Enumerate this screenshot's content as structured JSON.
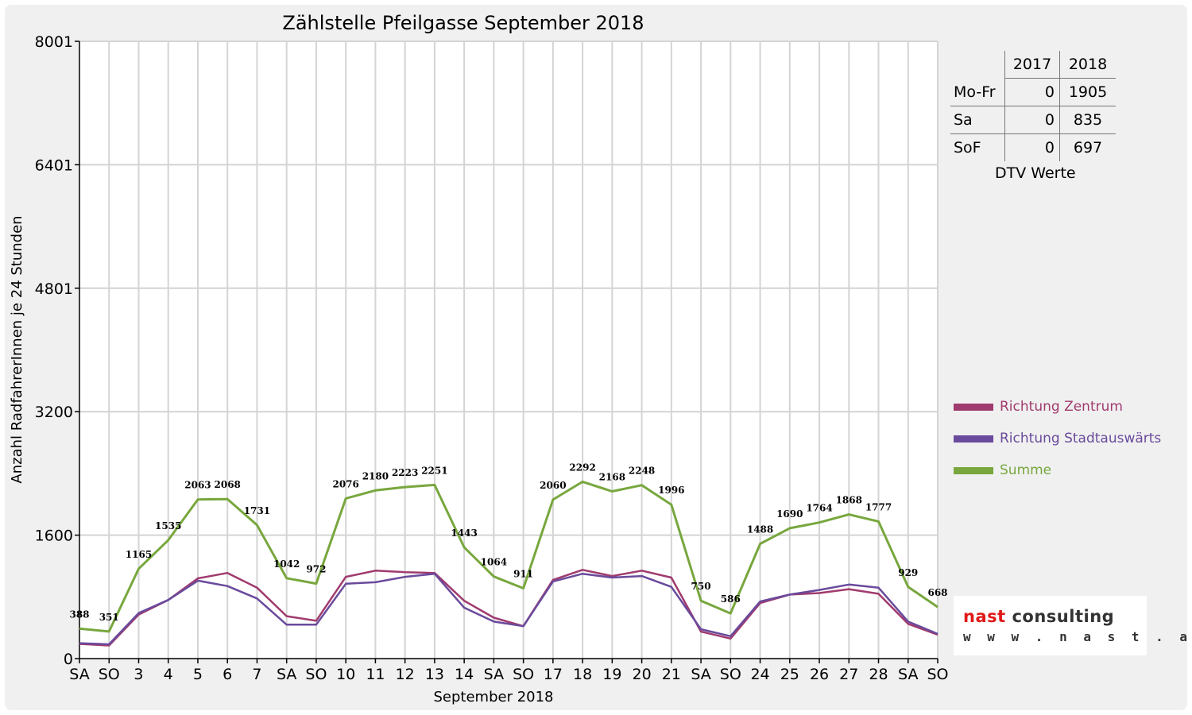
{
  "chart_data": {
    "type": "line",
    "title": "Zählstelle Pfeilgasse September 2018",
    "xlabel": "September 2018",
    "ylabel": "Anzahl RadfahrerInnen je 24 Stunden",
    "ylim": [
      0,
      8001
    ],
    "yticks": [
      "0",
      "1600",
      "3200",
      "4801",
      "6401",
      "8001"
    ],
    "ytick_values": [
      0,
      1600,
      3200,
      4801,
      6401,
      8001
    ],
    "categories": [
      "SA",
      "SO",
      "3",
      "4",
      "5",
      "6",
      "7",
      "SA",
      "SO",
      "10",
      "11",
      "12",
      "13",
      "14",
      "SA",
      "SO",
      "17",
      "18",
      "19",
      "20",
      "21",
      "SA",
      "SO",
      "24",
      "25",
      "26",
      "27",
      "28",
      "SA",
      "SO"
    ],
    "weekend_red": [
      false,
      true,
      false,
      false,
      false,
      false,
      false,
      false,
      true,
      false,
      false,
      false,
      false,
      false,
      false,
      true,
      false,
      false,
      false,
      false,
      false,
      false,
      true,
      false,
      false,
      false,
      false,
      false,
      false,
      true
    ],
    "grid": true,
    "legend_position": "right",
    "series": [
      {
        "name": "Richtung Zentrum",
        "color": "#a03b6e",
        "values": [
          190,
          170,
          570,
          760,
          1040,
          1110,
          920,
          550,
          490,
          1060,
          1140,
          1120,
          1110,
          750,
          530,
          420,
          1020,
          1150,
          1070,
          1140,
          1050,
          350,
          260,
          720,
          830,
          850,
          900,
          840,
          450,
          310
        ]
      },
      {
        "name": "Richtung Stadtauswärts",
        "color": "#6a4a9c",
        "values": [
          200,
          185,
          590,
          760,
          1010,
          940,
          780,
          440,
          440,
          970,
          990,
          1060,
          1100,
          660,
          480,
          420,
          1000,
          1100,
          1050,
          1070,
          930,
          380,
          290,
          740,
          830,
          890,
          960,
          920,
          480,
          320
        ]
      },
      {
        "name": "Summe",
        "color": "#78a73e",
        "values": [
          388,
          351,
          1165,
          1535,
          2063,
          2068,
          1731,
          1042,
          972,
          2076,
          2180,
          2223,
          2251,
          1443,
          1064,
          911,
          2060,
          2292,
          2168,
          2248,
          1996,
          750,
          586,
          1488,
          1690,
          1764,
          1868,
          1777,
          929,
          668
        ]
      }
    ],
    "data_labels": [
      "388",
      "351",
      "1165",
      "1535",
      "2063",
      "2068",
      "1731",
      "1042",
      "972",
      "2076",
      "2180",
      "2223",
      "2251",
      "1443",
      "1064",
      "911",
      "2060",
      "2292",
      "2168",
      "2248",
      "1996",
      "750",
      "586",
      "1488",
      "1690",
      "1764",
      "1868",
      "1777",
      "929",
      "668"
    ]
  },
  "dtv_table": {
    "headers": [
      "",
      "2017",
      "2018"
    ],
    "rows": [
      {
        "label": "Mo-Fr",
        "v2017": "0",
        "v2018": "1905"
      },
      {
        "label": "Sa",
        "v2017": "0",
        "v2018": "835"
      },
      {
        "label": "SoF",
        "v2017": "0",
        "v2018": "697"
      }
    ],
    "caption": "DTV Werte"
  },
  "logo": {
    "word1": "nast",
    "word2": "consulting",
    "url": "w w w . n a s t . a t"
  }
}
